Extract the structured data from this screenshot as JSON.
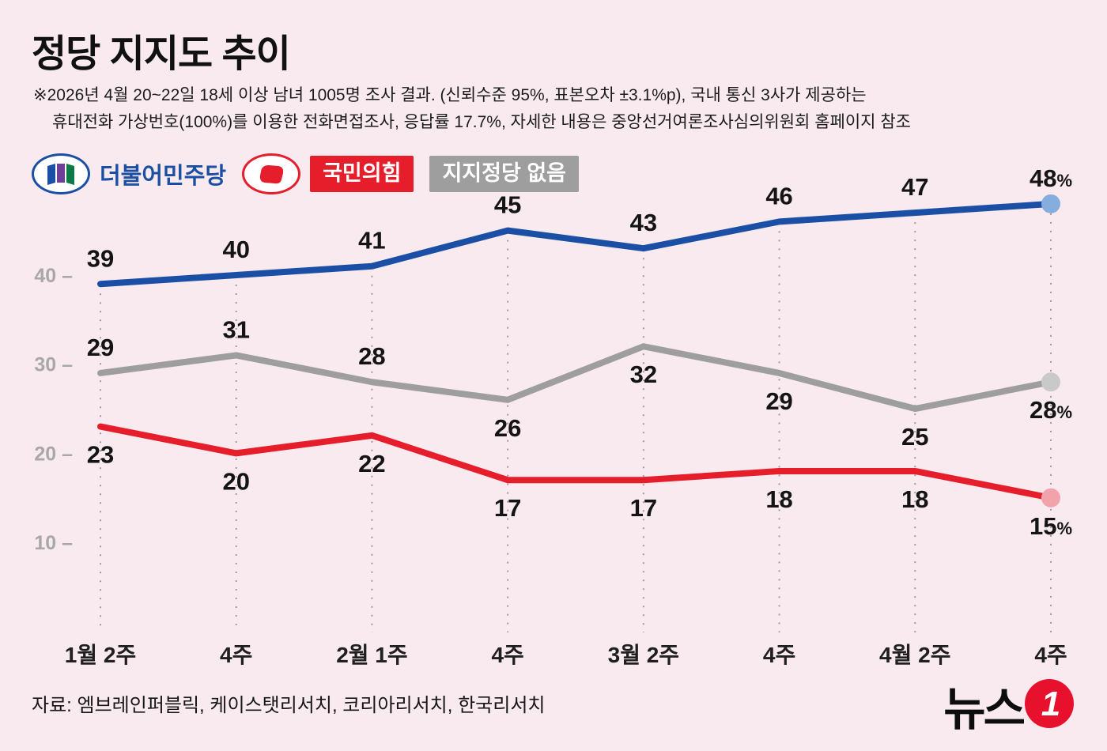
{
  "header": {
    "title": "정당 지지도 추이",
    "note_line1": "※2026년 4월 20~22일 18세 이상 남녀 1005명 조사 결과. (신뢰수준 95%, 표본오차 ±3.1%p), 국내 통신 3사가 제공하는",
    "note_line2": "휴대전화 가상번호(100%)를 이용한 전화면접조사, 응답률 17.7%, 자세한 내용은 중앙선거여론조사심의위원회 홈페이지 참조"
  },
  "theme": {
    "background": "#f8eaee",
    "blue": "#1b4fa5",
    "red": "#e61e2b",
    "gray": "#9e9e9e",
    "logo_red": "#e8112d",
    "text_dark": "#111111",
    "axis_gray": "#a8a8a8",
    "grid_color": "#a8979e"
  },
  "legend": {
    "items": [
      {
        "label": "더불어민주당",
        "color": "#1b4fa5",
        "icon": "democratic-party-flag-icon"
      },
      {
        "label": "국민의힘",
        "color": "#e61e2b",
        "icon": "people-power-party-icon"
      },
      {
        "label": "지지정당 없음",
        "color": "#9e9e9e",
        "icon": null
      }
    ]
  },
  "chart_data": {
    "type": "line",
    "title": "정당 지지도 추이",
    "x_labels": [
      "1월 2주",
      "4주",
      "2월 1주",
      "4주",
      "3월 2주",
      "4주",
      "4월 2주",
      "4주"
    ],
    "y_ticks": [
      40,
      30,
      20,
      10
    ],
    "y_range": [
      5,
      52
    ],
    "grid": "vertical-dotted",
    "legend_position": "top-left",
    "series": [
      {
        "name": "더불어민주당",
        "color": "#1b4fa5",
        "endpoint_color": "#85aede",
        "values": [
          39,
          40,
          41,
          45,
          43,
          46,
          47,
          48
        ],
        "labels": [
          "39",
          "40",
          "41",
          "45",
          "43",
          "46",
          "47",
          "48%"
        ],
        "label_side": [
          "above",
          "above",
          "above",
          "above",
          "above",
          "above",
          "above",
          "above"
        ]
      },
      {
        "name": "지지정당 없음",
        "color": "#9e9e9e",
        "endpoint_color": "#c9c9c9",
        "values": [
          29,
          31,
          28,
          26,
          32,
          29,
          25,
          28
        ],
        "labels": [
          "29",
          "31",
          "28",
          "26",
          "32",
          "29",
          "25",
          "28%"
        ],
        "label_side": [
          "above",
          "above",
          "above",
          "below",
          "below",
          "below",
          "below",
          "below"
        ]
      },
      {
        "name": "국민의힘",
        "color": "#e61e2b",
        "endpoint_color": "#f2a2aa",
        "values": [
          23,
          20,
          22,
          17,
          17,
          18,
          18,
          15
        ],
        "labels": [
          "23",
          "20",
          "22",
          "17",
          "17",
          "18",
          "18",
          "15%"
        ],
        "label_side": [
          "below",
          "below",
          "below",
          "below",
          "below",
          "below",
          "below",
          "below"
        ]
      }
    ]
  },
  "footer": {
    "source": "자료: 엠브레인퍼블릭, 케이스탯리서치, 코리아리서치, 한국리서치",
    "logo_text": "뉴스",
    "logo_badge": "1"
  }
}
